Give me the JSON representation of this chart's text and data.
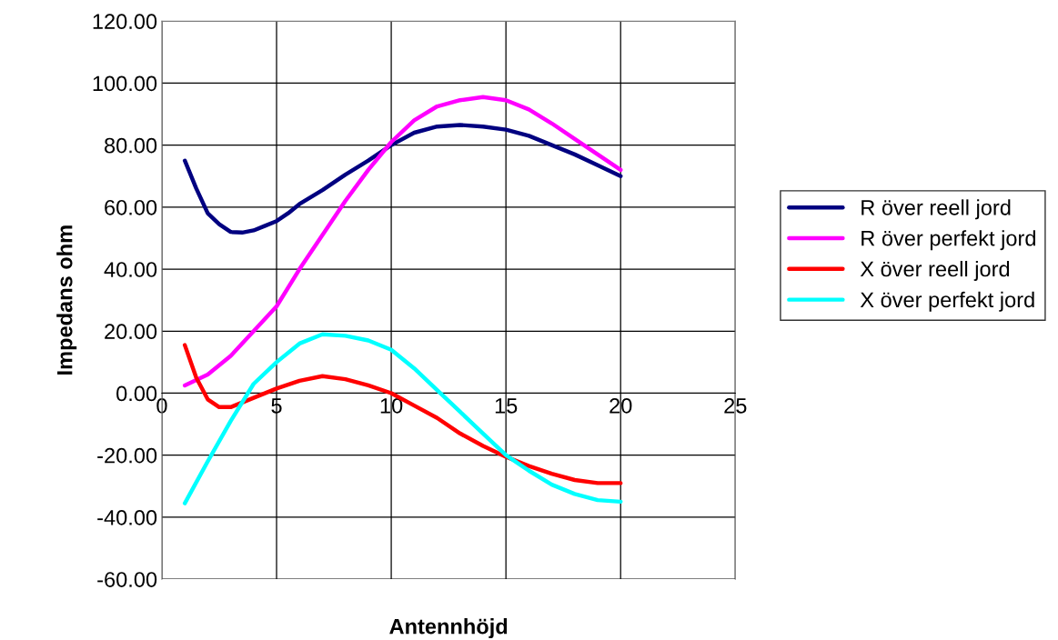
{
  "chart_data": {
    "type": "line",
    "xlabel": "Antennhöjd",
    "ylabel": "Impedans ohm",
    "xlim": [
      0,
      25
    ],
    "xticks": [
      0,
      5,
      10,
      15,
      20,
      25
    ],
    "ylim": [
      -60,
      120
    ],
    "yticks": [
      {
        "value": -60,
        "label": "-60.00"
      },
      {
        "value": -40,
        "label": "-40.00"
      },
      {
        "value": -20,
        "label": "-20.00"
      },
      {
        "value": 0,
        "label": "0.00"
      },
      {
        "value": 20,
        "label": "20.00"
      },
      {
        "value": 40,
        "label": "40.00"
      },
      {
        "value": 60,
        "label": "60.00"
      },
      {
        "value": 80,
        "label": "80.00"
      },
      {
        "value": 100,
        "label": "100.00"
      },
      {
        "value": 120,
        "label": "120.00"
      }
    ],
    "grid": true,
    "legend": "right",
    "marker": "none",
    "line_style": "solid",
    "series": [
      {
        "name": "R över reell jord",
        "color": "#000080",
        "x": [
          1,
          1.5,
          2,
          2.5,
          3,
          3.5,
          4,
          4.5,
          5,
          5.5,
          6,
          7,
          8,
          9,
          10,
          11,
          12,
          13,
          14,
          15,
          16,
          17,
          18,
          19,
          20
        ],
        "values": [
          75,
          66,
          58,
          54.5,
          52,
          51.8,
          52.5,
          54,
          55.5,
          58,
          61,
          65.5,
          70.5,
          75,
          80,
          84,
          86,
          86.5,
          86,
          85,
          83,
          80,
          77,
          73.5,
          70
        ]
      },
      {
        "name": "R över perfekt jord",
        "color": "#ff00ff",
        "x": [
          1,
          2,
          3,
          4,
          5,
          6,
          7,
          8,
          9,
          10,
          11,
          12,
          13,
          14,
          15,
          16,
          17,
          18,
          19,
          20
        ],
        "values": [
          2.5,
          6,
          12,
          20,
          28,
          40,
          51,
          62,
          72,
          81,
          88,
          92.5,
          94.5,
          95.5,
          94.5,
          91.5,
          87,
          82,
          77,
          72
        ]
      },
      {
        "name": "X över reell jord",
        "color": "#ff0000",
        "x": [
          1,
          1.5,
          2,
          2.5,
          3,
          4,
          5,
          6,
          7,
          8,
          9,
          10,
          11,
          12,
          13,
          14,
          15,
          16,
          17,
          18,
          19,
          20
        ],
        "values": [
          15.5,
          5,
          -2,
          -4.5,
          -4.5,
          -1.5,
          1.5,
          4,
          5.5,
          4.5,
          2.5,
          0,
          -4,
          -8,
          -13,
          -17,
          -20.5,
          -23.5,
          -26,
          -28,
          -29,
          -29
        ]
      },
      {
        "name": "X över perfekt jord",
        "color": "#00ffff",
        "x": [
          1,
          2,
          3,
          4,
          5,
          6,
          7,
          8,
          9,
          10,
          11,
          12,
          13,
          14,
          15,
          16,
          17,
          18,
          19,
          20
        ],
        "values": [
          -35.5,
          -22,
          -9,
          3,
          10,
          16,
          19,
          18.5,
          17,
          14,
          8,
          1,
          -6,
          -13,
          -20,
          -25,
          -29.5,
          -32.5,
          -34.5,
          -35
        ]
      }
    ]
  }
}
